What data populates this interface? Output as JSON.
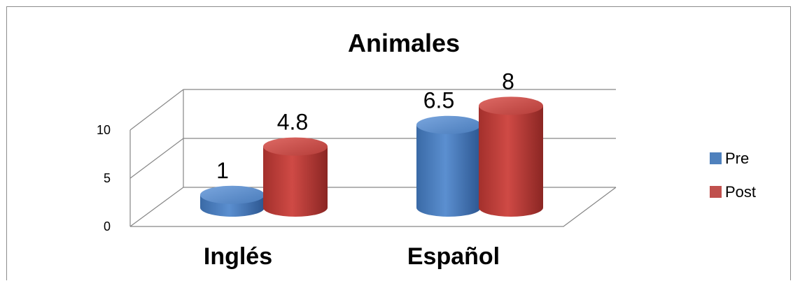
{
  "chart_data": {
    "type": "bar",
    "style": "3d-cylinder",
    "title": "Animales",
    "xlabel": "",
    "ylabel": "",
    "categories": [
      "Inglés",
      "Español"
    ],
    "series": [
      {
        "name": "Pre",
        "values": [
          1,
          6.5
        ],
        "color": "#4f81bd"
      },
      {
        "name": "Post",
        "values": [
          4.8,
          8
        ],
        "color": "#c0504d"
      }
    ],
    "data_labels": [
      [
        "1",
        "6.5"
      ],
      [
        "4.8",
        "8"
      ]
    ],
    "ylim": [
      0,
      10
    ],
    "yticks": [
      0,
      5,
      10
    ],
    "grid": true,
    "legend": "right"
  }
}
